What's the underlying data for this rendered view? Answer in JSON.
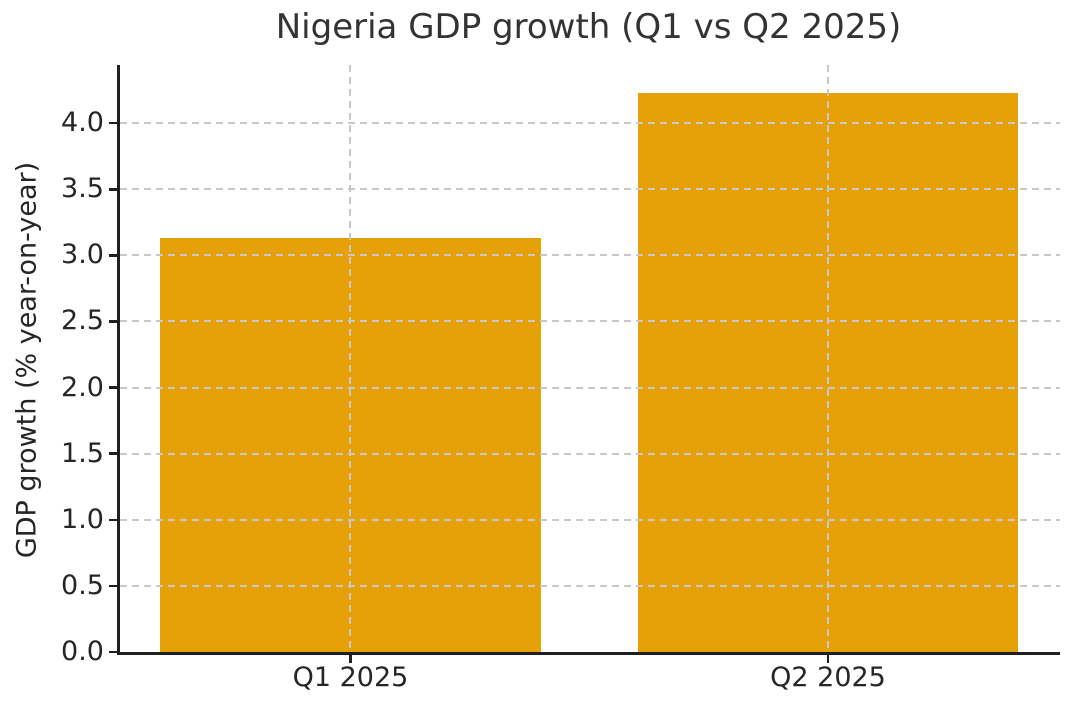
{
  "chart_data": {
    "type": "bar",
    "title": "Nigeria GDP growth (Q1 vs Q2 2025)",
    "categories": [
      "Q1 2025",
      "Q2 2025"
    ],
    "values": [
      3.13,
      4.23
    ],
    "xlabel": "",
    "ylabel": "GDP growth (% year-on-year)",
    "ylim": [
      0,
      4.44
    ],
    "yticks": [
      0,
      0.5,
      1,
      1.5,
      2,
      2.5,
      3,
      3.5,
      4
    ],
    "ytick_labels": [
      "0.0",
      "0.5",
      "1.0",
      "1.5",
      "2.0",
      "2.5",
      "3.0",
      "3.5",
      "4.0"
    ],
    "grid": true,
    "grid_style": "dashed",
    "legend_position": "none",
    "colors": {
      "bar": "#E6A109",
      "grid": "#c8c8c8",
      "axis": "#1f1f1f",
      "text": "#262626",
      "background": "#ffffff"
    }
  }
}
